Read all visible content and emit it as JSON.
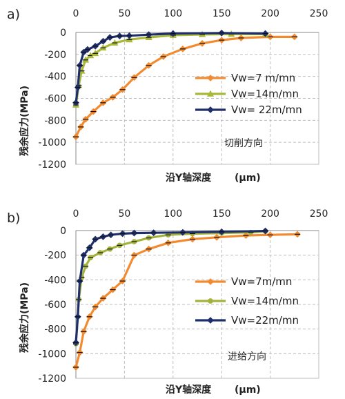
{
  "chart_data": [
    {
      "panel": "a)",
      "type": "line",
      "xlabel": "沿Y轴深度",
      "xunit": "(μm)",
      "ylabel": "残余应力(MPa)",
      "annotation": "切削方向",
      "xlim": [
        0,
        250
      ],
      "ylim": [
        -1200,
        0
      ],
      "xticks": [
        "0",
        "50",
        "100",
        "150",
        "200",
        "250"
      ],
      "yticks": [
        "0",
        "-200",
        "-400",
        "-600",
        "-800",
        "-1000",
        "-1200"
      ],
      "legend_position": "right",
      "series": [
        {
          "name": "Vw=7 m/mn",
          "color": "#f28a2f",
          "marker": "diamond",
          "points": [
            [
              0,
              -950
            ],
            [
              5,
              -860
            ],
            [
              10,
              -790
            ],
            [
              18,
              -720
            ],
            [
              28,
              -640
            ],
            [
              38,
              -590
            ],
            [
              48,
              -520
            ],
            [
              60,
              -410
            ],
            [
              75,
              -300
            ],
            [
              90,
              -220
            ],
            [
              110,
              -150
            ],
            [
              130,
              -100
            ],
            [
              150,
              -70
            ],
            [
              170,
              -50
            ],
            [
              200,
              -40
            ],
            [
              225,
              -40
            ]
          ]
        },
        {
          "name": "Vw=14m/mn",
          "color": "#a9b838",
          "marker": "triangle",
          "points": [
            [
              0,
              -660
            ],
            [
              3,
              -480
            ],
            [
              6,
              -350
            ],
            [
              10,
              -250
            ],
            [
              15,
              -210
            ],
            [
              20,
              -190
            ],
            [
              28,
              -140
            ],
            [
              40,
              -95
            ],
            [
              55,
              -65
            ],
            [
              75,
              -45
            ],
            [
              100,
              -25
            ],
            [
              130,
              -18
            ],
            [
              160,
              -15
            ],
            [
              195,
              -15
            ]
          ]
        },
        {
          "name": "Vw= 22m/mn",
          "color": "#1f2f6b",
          "marker": "diamond",
          "points": [
            [
              0,
              -640
            ],
            [
              2,
              -500
            ],
            [
              4,
              -300
            ],
            [
              8,
              -180
            ],
            [
              12,
              -155
            ],
            [
              20,
              -125
            ],
            [
              28,
              -80
            ],
            [
              35,
              -45
            ],
            [
              45,
              -32
            ],
            [
              55,
              -30
            ],
            [
              75,
              -20
            ],
            [
              100,
              -10
            ],
            [
              150,
              -5
            ],
            [
              195,
              -10
            ]
          ]
        }
      ]
    },
    {
      "panel": "b)",
      "type": "line",
      "xlabel": "沿Y轴深度",
      "xunit": "(μm)",
      "ylabel": "残余应力(MPa)",
      "annotation": "进给方向",
      "xlim": [
        0,
        250
      ],
      "ylim": [
        -1200,
        0
      ],
      "xticks": [
        "0",
        "50",
        "100",
        "150",
        "200",
        "250"
      ],
      "yticks": [
        "0",
        "-200",
        "-400",
        "-600",
        "-800",
        "-1000",
        "-1200"
      ],
      "legend_position": "right",
      "series": [
        {
          "name": "Vw=7m/mn",
          "color": "#f28a2f",
          "marker": "diamond",
          "points": [
            [
              0,
              -1110
            ],
            [
              4,
              -990
            ],
            [
              8,
              -820
            ],
            [
              14,
              -700
            ],
            [
              20,
              -620
            ],
            [
              28,
              -550
            ],
            [
              38,
              -480
            ],
            [
              48,
              -410
            ],
            [
              60,
              -200
            ],
            [
              75,
              -150
            ],
            [
              95,
              -100
            ],
            [
              120,
              -70
            ],
            [
              145,
              -55
            ],
            [
              175,
              -40
            ],
            [
              200,
              -35
            ],
            [
              228,
              -30
            ]
          ]
        },
        {
          "name": "Vw=14m/mn",
          "color": "#a3b23a",
          "marker": "circle",
          "points": [
            [
              0,
              -920
            ],
            [
              3,
              -560
            ],
            [
              6,
              -380
            ],
            [
              10,
              -290
            ],
            [
              15,
              -220
            ],
            [
              25,
              -180
            ],
            [
              35,
              -150
            ],
            [
              45,
              -120
            ],
            [
              60,
              -90
            ],
            [
              75,
              -60
            ],
            [
              95,
              -35
            ],
            [
              120,
              -25
            ],
            [
              150,
              -20
            ],
            [
              180,
              -15
            ],
            [
              195,
              -5
            ]
          ]
        },
        {
          "name": "Vw=22m/mn",
          "color": "#1f2f6b",
          "marker": "diamond",
          "points": [
            [
              0,
              -910
            ],
            [
              2,
              -700
            ],
            [
              4,
              -410
            ],
            [
              8,
              -200
            ],
            [
              14,
              -140
            ],
            [
              20,
              -70
            ],
            [
              28,
              -50
            ],
            [
              36,
              -35
            ],
            [
              48,
              -25
            ],
            [
              60,
              -20
            ],
            [
              80,
              -18
            ],
            [
              110,
              -15
            ],
            [
              150,
              -10
            ],
            [
              195,
              -3
            ]
          ]
        }
      ]
    }
  ]
}
